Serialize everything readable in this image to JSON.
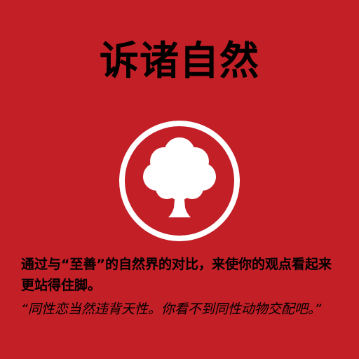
{
  "card": {
    "title": "诉诸自然",
    "icon": "tree-icon",
    "description": "通过与“至善”的自然界的对比，来使你的观点看起来更站得住脚。",
    "quote": "“同性恋当然违背天性。你看不到同性动物交配吧。”",
    "colors": {
      "background": "#c21f26",
      "icon": "#ffffff",
      "text": "#000000"
    }
  }
}
